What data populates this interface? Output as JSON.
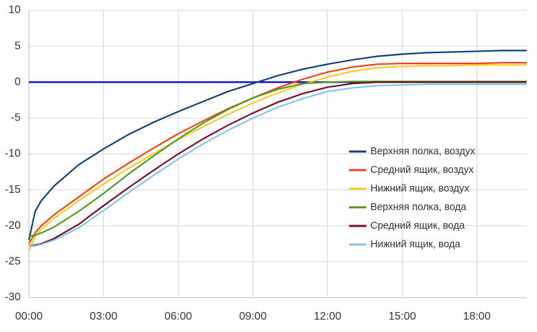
{
  "chart_data": {
    "type": "line",
    "x": [
      0,
      0.25,
      0.5,
      1,
      2,
      3,
      4,
      5,
      6,
      7,
      8,
      9,
      10,
      11,
      12,
      13,
      14,
      15,
      16,
      17,
      18,
      19,
      20
    ],
    "series": [
      {
        "name": "Верхняя полка, воздух",
        "color": "#0d3f7a",
        "values": [
          -22,
          -18,
          -16.5,
          -14.5,
          -11.5,
          -9.3,
          -7.3,
          -5.6,
          -4.1,
          -2.7,
          -1.3,
          -0.2,
          0.9,
          1.8,
          2.5,
          3.1,
          3.6,
          3.9,
          4.1,
          4.2,
          4.3,
          4.4,
          4.4
        ]
      },
      {
        "name": "Средний ящик, воздух",
        "color": "#f0401a",
        "values": [
          -22.5,
          -21,
          -20,
          -18.5,
          -16,
          -13.5,
          -11.3,
          -9.2,
          -7.2,
          -5.4,
          -3.7,
          -2.2,
          -0.8,
          0.4,
          1.4,
          2.1,
          2.5,
          2.6,
          2.6,
          2.6,
          2.6,
          2.7,
          2.7
        ]
      },
      {
        "name": "Нижний ящик, воздух",
        "color": "#ffc81e",
        "values": [
          -23.5,
          -21.5,
          -20.5,
          -19,
          -16.5,
          -14.2,
          -12,
          -10,
          -8,
          -6.2,
          -4.5,
          -2.9,
          -1.5,
          -0.3,
          0.7,
          1.5,
          2,
          2.2,
          2.3,
          2.3,
          2.4,
          2.4,
          2.4
        ]
      },
      {
        "name": "Верхняя полка, вода",
        "color": "#4e9a1c",
        "values": [
          -21.5,
          -21.3,
          -21,
          -20.2,
          -18,
          -15.5,
          -12.8,
          -10.3,
          -7.9,
          -5.7,
          -3.8,
          -2.2,
          -1,
          -0.2,
          0,
          0.1,
          0.1,
          0.1,
          0.1,
          0.1,
          0.1,
          0.1,
          0.1
        ]
      },
      {
        "name": "Средний ящик, вода",
        "color": "#7a0a20",
        "values": [
          -22.8,
          -22.7,
          -22.5,
          -21.8,
          -19.8,
          -17.2,
          -14.7,
          -12.3,
          -10,
          -7.9,
          -6,
          -4.3,
          -2.8,
          -1.6,
          -0.7,
          -0.2,
          0,
          0,
          0,
          0,
          0,
          0,
          0
        ]
      },
      {
        "name": "Нижний ящик, вода",
        "color": "#80c4ee",
        "values": [
          -22.8,
          -22.8,
          -22.6,
          -22,
          -20.3,
          -17.9,
          -15.4,
          -13,
          -10.7,
          -8.6,
          -6.7,
          -5,
          -3.5,
          -2.3,
          -1.3,
          -0.8,
          -0.5,
          -0.4,
          -0.3,
          -0.3,
          -0.3,
          -0.3,
          -0.3
        ]
      }
    ],
    "reference_line": {
      "value": 0,
      "color": "#1010e0"
    },
    "xlim": [
      0,
      20
    ],
    "xticks": [
      {
        "value": 0,
        "label": "00:00"
      },
      {
        "value": 3,
        "label": "03:00"
      },
      {
        "value": 6,
        "label": "06:00"
      },
      {
        "value": 9,
        "label": "09:00"
      },
      {
        "value": 12,
        "label": "12:00"
      },
      {
        "value": 15,
        "label": "15:00"
      },
      {
        "value": 18,
        "label": "18:00"
      }
    ],
    "ylim": [
      -30,
      10
    ],
    "yticks": [
      -30,
      -25,
      -20,
      -15,
      -10,
      -5,
      0,
      5,
      10
    ],
    "grid": true,
    "legend": "right"
  }
}
